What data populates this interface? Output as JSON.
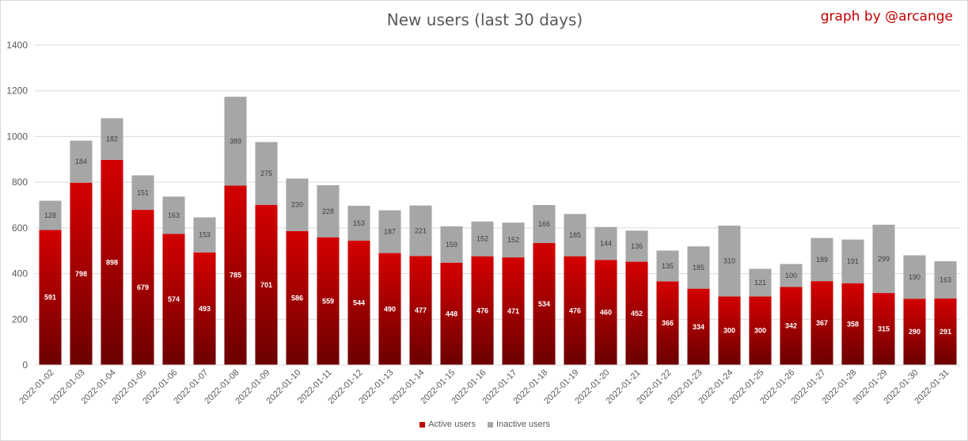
{
  "title": "New users (last 30 days)",
  "credit": "graph by @arcange",
  "colors": {
    "active_top": "#d40000",
    "active_bottom": "#6b0000",
    "inactive": "#a6a6a6",
    "grid": "#d9d9d9"
  },
  "legend": {
    "active": "Active users",
    "inactive": "Inactive users"
  },
  "chart_data": {
    "type": "bar",
    "stacked": true,
    "title": "New users (last 30 days)",
    "xlabel": "",
    "ylabel": "",
    "ylim": [
      0,
      1400
    ],
    "yticks": [
      0,
      200,
      400,
      600,
      800,
      1000,
      1200,
      1400
    ],
    "grid": true,
    "legend_position": "bottom",
    "categories": [
      "2022-01-02",
      "2022-01-03",
      "2022-01-04",
      "2022-01-05",
      "2022-01-06",
      "2022-01-07",
      "2022-01-08",
      "2022-01-09",
      "2022-01-10",
      "2022-01-11",
      "2022-01-12",
      "2022-01-13",
      "2022-01-14",
      "2022-01-15",
      "2022-01-16",
      "2022-01-17",
      "2022-01-18",
      "2022-01-19",
      "2022-01-20",
      "2022-01-21",
      "2022-01-22",
      "2022-01-23",
      "2022-01-24",
      "2022-01-25",
      "2022-01-26",
      "2022-01-27",
      "2022-01-28",
      "2022-01-29",
      "2022-01-30",
      "2022-01-31"
    ],
    "series": [
      {
        "name": "Active users",
        "values": [
          591,
          798,
          898,
          679,
          574,
          493,
          785,
          701,
          586,
          559,
          544,
          490,
          477,
          448,
          476,
          471,
          534,
          476,
          460,
          452,
          366,
          334,
          300,
          300,
          342,
          367,
          358,
          315,
          290,
          291
        ]
      },
      {
        "name": "Inactive users",
        "values": [
          128,
          184,
          182,
          151,
          163,
          153,
          389,
          275,
          230,
          228,
          153,
          187,
          221,
          159,
          152,
          152,
          166,
          185,
          144,
          136,
          135,
          185,
          310,
          121,
          100,
          189,
          191,
          299,
          190,
          163
        ]
      }
    ]
  }
}
